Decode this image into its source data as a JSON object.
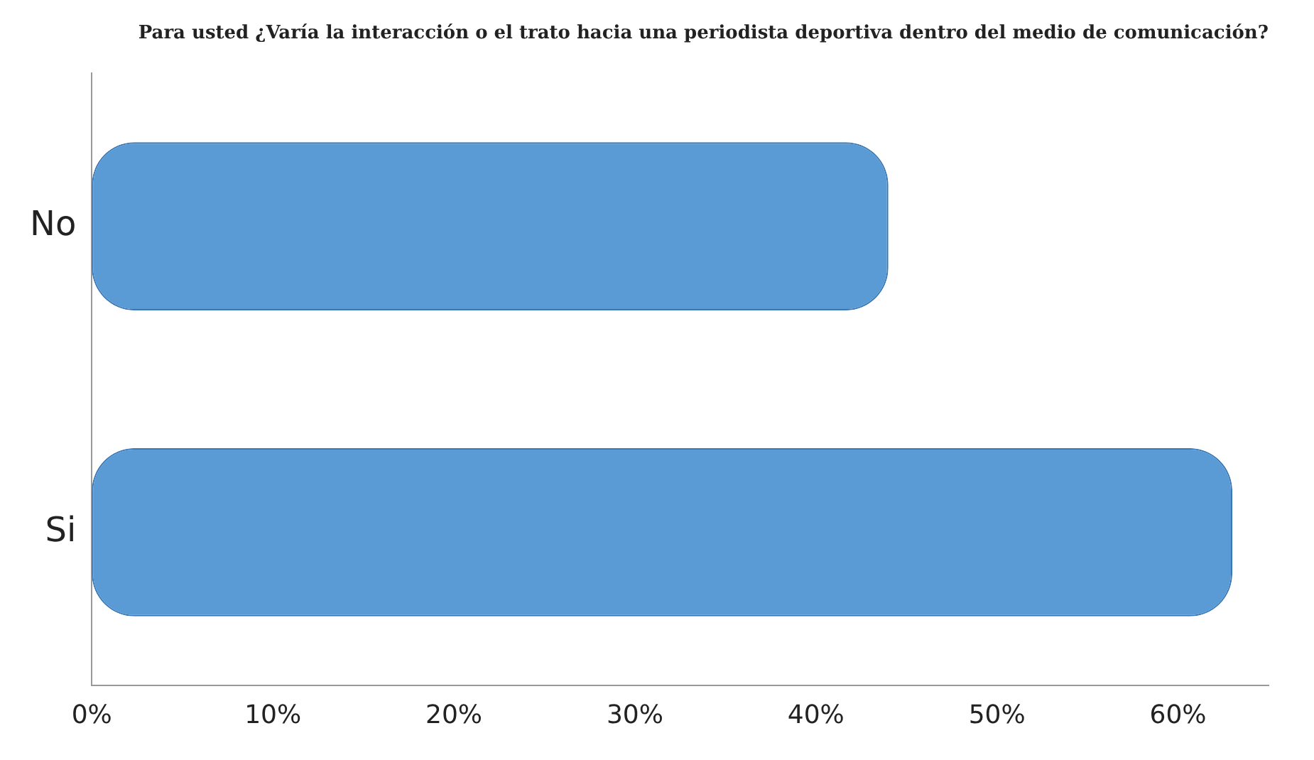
{
  "chart_data": {
    "type": "bar",
    "orientation": "horizontal",
    "title": "Para usted ¿Varía la interacción o el trato hacia una periodista deportiva dentro del medio de comunicación?",
    "categories": [
      "No",
      "Si"
    ],
    "values": [
      44,
      63
    ],
    "color": "#5b9bd5",
    "xlim": [
      0,
      65
    ],
    "xticks": [
      {
        "value": 0,
        "label": "0%"
      },
      {
        "value": 10,
        "label": "10%"
      },
      {
        "value": 20,
        "label": "20%"
      },
      {
        "value": 30,
        "label": "30%"
      },
      {
        "value": 40,
        "label": "40%"
      },
      {
        "value": 50,
        "label": "50%"
      },
      {
        "value": 60,
        "label": "60%"
      }
    ],
    "grid": false,
    "legend": false
  }
}
